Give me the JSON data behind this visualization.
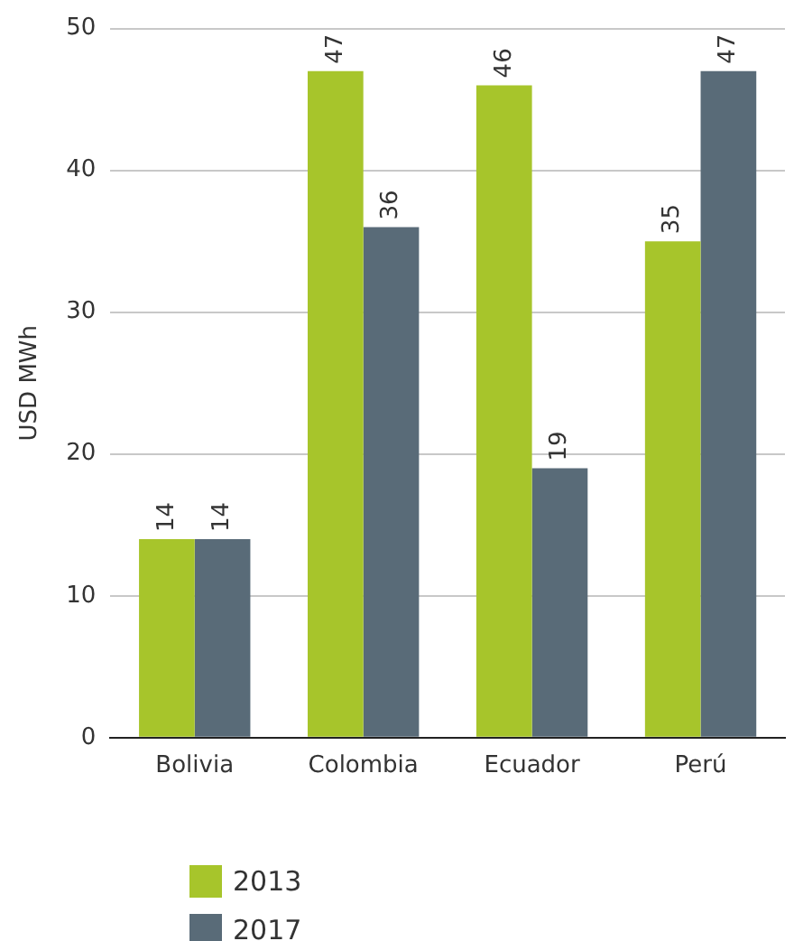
{
  "chart_data": {
    "type": "bar",
    "ylabel": "USD MWh",
    "categories": [
      "Bolivia",
      "Colombia",
      "Ecuador",
      "Perú"
    ],
    "series": [
      {
        "name": "2013",
        "color": "#a7c52b",
        "values": [
          14,
          47,
          46,
          35
        ]
      },
      {
        "name": "2017",
        "color": "#596b78",
        "values": [
          14,
          36,
          19,
          47
        ]
      }
    ],
    "ylim": [
      0,
      50
    ],
    "yticks": [
      0,
      10,
      20,
      30,
      40,
      50
    ],
    "grid": "y",
    "legend": "bottom left",
    "data_labels": true
  }
}
